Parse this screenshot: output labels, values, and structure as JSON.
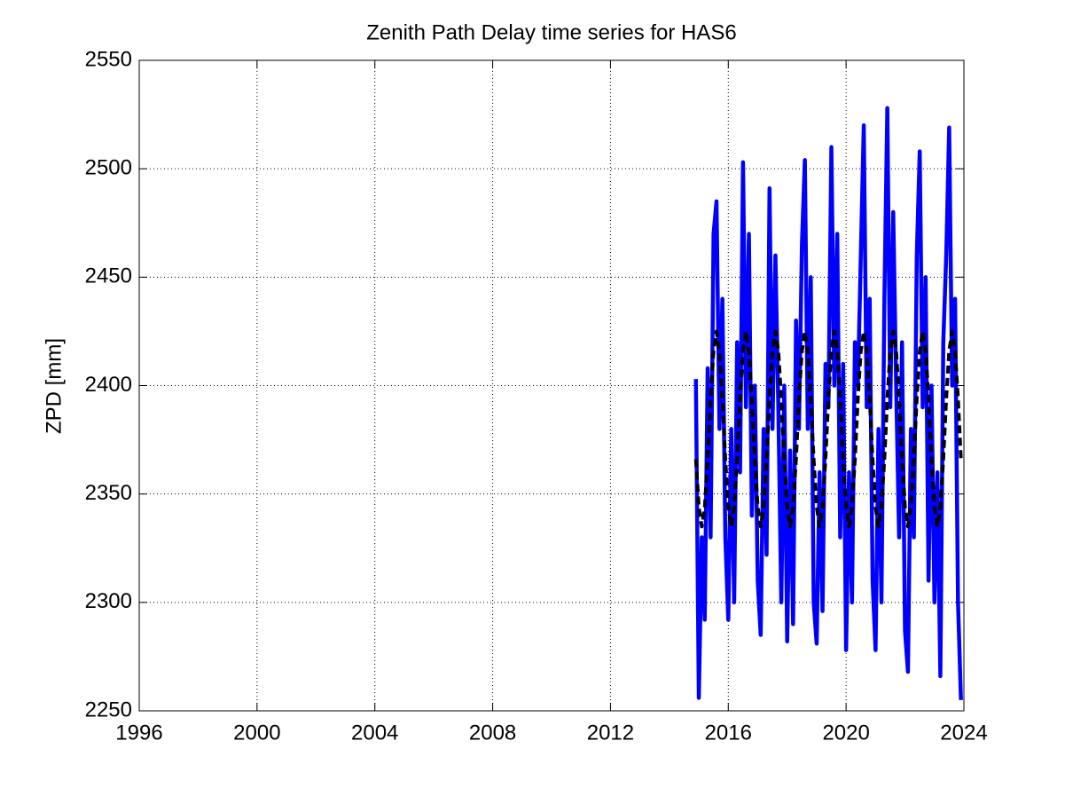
{
  "chart_data": {
    "type": "line",
    "title": "Zenith Path Delay time series for HAS6",
    "ylabel": "ZPD [mm]",
    "x": [
      2014.9,
      2015,
      2015.1,
      2015.2,
      2015.3,
      2015.4,
      2015.5,
      2015.6,
      2015.7,
      2015.8,
      2015.9,
      2016,
      2016.1,
      2016.2,
      2016.3,
      2016.4,
      2016.5,
      2016.6,
      2016.7,
      2016.8,
      2016.9,
      2017,
      2017.1,
      2017.2,
      2017.3,
      2017.4,
      2017.5,
      2017.6,
      2017.7,
      2017.8,
      2017.9,
      2018,
      2018.1,
      2018.2,
      2018.3,
      2018.4,
      2018.5,
      2018.6,
      2018.7,
      2018.8,
      2018.9,
      2019,
      2019.1,
      2019.2,
      2019.3,
      2019.4,
      2019.5,
      2019.6,
      2019.7,
      2019.8,
      2019.9,
      2020,
      2020.1,
      2020.2,
      2020.3,
      2020.4,
      2020.5,
      2020.6,
      2020.7,
      2020.8,
      2020.9,
      2021,
      2021.1,
      2021.2,
      2021.3,
      2021.4,
      2021.5,
      2021.6,
      2021.7,
      2021.8,
      2021.9,
      2022,
      2022.1,
      2022.2,
      2022.3,
      2022.4,
      2022.5,
      2022.6,
      2022.7,
      2022.8,
      2022.9,
      2023,
      2023.1,
      2023.2,
      2023.3,
      2023.4,
      2023.5,
      2023.6,
      2023.7,
      2023.8,
      2023.9
    ],
    "series": [
      {
        "color": "#0000ff",
        "line_style": "solid",
        "values": [
          2403,
          2256,
          2330,
          2292,
          2408,
          2330,
          2470,
          2485,
          2380,
          2440,
          2330,
          2292,
          2380,
          2300,
          2420,
          2360,
          2503,
          2390,
          2470,
          2340,
          2400,
          2310,
          2285,
          2380,
          2322,
          2491,
          2380,
          2460,
          2390,
          2300,
          2400,
          2282,
          2370,
          2290,
          2430,
          2380,
          2465,
          2504,
          2380,
          2450,
          2300,
          2281,
          2360,
          2296,
          2410,
          2390,
          2510,
          2400,
          2470,
          2330,
          2410,
          2278,
          2360,
          2300,
          2420,
          2400,
          2460,
          2520,
          2390,
          2440,
          2310,
          2278,
          2380,
          2300,
          2440,
          2528,
          2390,
          2480,
          2400,
          2330,
          2420,
          2287,
          2268,
          2380,
          2330,
          2460,
          2508,
          2390,
          2450,
          2310,
          2400,
          2300,
          2360,
          2266,
          2420,
          2460,
          2519,
          2400,
          2440,
          2300,
          2255
        ]
      },
      {
        "color": "#000000",
        "line_style": "dashed",
        "values": [
          2366,
          2344,
          2335,
          2344,
          2366,
          2394,
          2416,
          2425,
          2416,
          2394,
          2366,
          2344,
          2335,
          2344,
          2366,
          2394,
          2416,
          2425,
          2416,
          2394,
          2366,
          2344,
          2335,
          2344,
          2366,
          2394,
          2416,
          2425,
          2416,
          2394,
          2366,
          2344,
          2335,
          2344,
          2366,
          2394,
          2416,
          2425,
          2416,
          2394,
          2366,
          2344,
          2335,
          2344,
          2366,
          2394,
          2416,
          2425,
          2416,
          2394,
          2366,
          2344,
          2335,
          2344,
          2366,
          2394,
          2416,
          2425,
          2416,
          2394,
          2366,
          2344,
          2335,
          2344,
          2366,
          2394,
          2416,
          2425,
          2416,
          2394,
          2366,
          2344,
          2335,
          2344,
          2366,
          2394,
          2416,
          2425,
          2416,
          2394,
          2366,
          2344,
          2335,
          2344,
          2366,
          2394,
          2416,
          2425,
          2416,
          2394,
          2366
        ]
      }
    ],
    "xlim": [
      1996,
      2024
    ],
    "xticks": [
      1996,
      2000,
      2004,
      2008,
      2012,
      2016,
      2020,
      2024
    ],
    "ylim": [
      2250,
      2550
    ],
    "yticks": [
      2250,
      2300,
      2350,
      2400,
      2450,
      2500,
      2550
    ],
    "grid": true
  }
}
